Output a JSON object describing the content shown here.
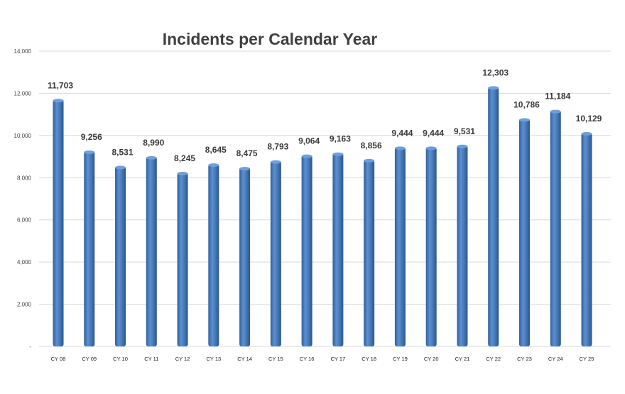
{
  "chart_data": {
    "type": "bar",
    "title": "Incidents per Calendar Year",
    "xlabel": "",
    "ylabel": "",
    "categories": [
      "CY 08",
      "CY 09",
      "CY 10",
      "CY 11",
      "CY 12",
      "CY 13",
      "CY 14",
      "CY 15",
      "CY 16",
      "CY 17",
      "CY 18",
      "CY 19",
      "CY 20",
      "CY 21",
      "CY 22",
      "CY 23",
      "CY 24",
      "CY 25"
    ],
    "values": [
      11703,
      9256,
      8531,
      8990,
      8245,
      8645,
      8475,
      8793,
      9064,
      9163,
      8856,
      9444,
      9444,
      9531,
      12303,
      10786,
      11184,
      10129
    ],
    "data_labels": [
      "11,703",
      "9,256",
      "8,531",
      "8,990",
      "8,245",
      "8,645",
      "8,475",
      "8,793",
      "9,064",
      "9,163",
      "8,856",
      "9,444",
      "9,444",
      "9,531",
      "12,303",
      "10,786",
      "11,184",
      "10,129"
    ],
    "ylim": [
      0,
      14000
    ],
    "yticks": [
      0,
      2000,
      4000,
      6000,
      8000,
      10000,
      12000,
      14000
    ],
    "ytick_labels": [
      "-",
      "2,000",
      "4,000",
      "6,000",
      "8,000",
      "10,000",
      "12,000",
      "14,000"
    ],
    "grid": true,
    "legend": "none",
    "bar_color": "#4a7ebb"
  }
}
